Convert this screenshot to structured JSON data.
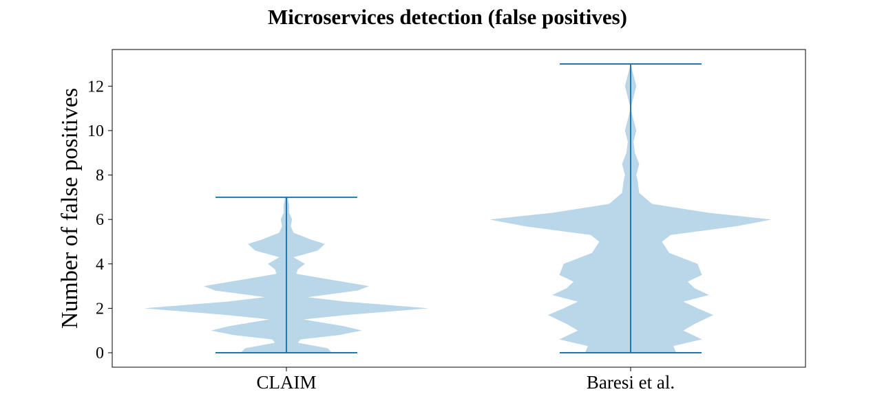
{
  "chart_data": {
    "type": "violin",
    "title": "Microservices detection (false positives)",
    "xlabel": "",
    "ylabel": "Number of false positives",
    "categories": [
      "CLAIM",
      "Baresi et al."
    ],
    "ylim": [
      -0.65,
      13.65
    ],
    "yticks": [
      0,
      2,
      4,
      6,
      8,
      10,
      12
    ],
    "grid": false,
    "legend": "none",
    "colors": {
      "body": "#bad6e9",
      "lines": "#1f77b4",
      "frame": "#000000"
    },
    "series": [
      {
        "category": "CLAIM",
        "min": 0,
        "max": 7,
        "density": [
          [
            0,
            0.32
          ],
          [
            0.2,
            0.29
          ],
          [
            0.45,
            0.08
          ],
          [
            0.6,
            0.1
          ],
          [
            0.8,
            0.37
          ],
          [
            1.0,
            0.53
          ],
          [
            1.2,
            0.4
          ],
          [
            1.5,
            0.12
          ],
          [
            1.7,
            0.42
          ],
          [
            2.0,
            1.0
          ],
          [
            2.3,
            0.42
          ],
          [
            2.5,
            0.15
          ],
          [
            2.8,
            0.5
          ],
          [
            3.0,
            0.58
          ],
          [
            3.3,
            0.3
          ],
          [
            3.55,
            0.07
          ],
          [
            3.75,
            0.08
          ],
          [
            4.0,
            0.13
          ],
          [
            4.3,
            0.05
          ],
          [
            4.6,
            0.22
          ],
          [
            4.9,
            0.27
          ],
          [
            5.1,
            0.17
          ],
          [
            5.4,
            0.05
          ],
          [
            5.7,
            0.03
          ],
          [
            6.0,
            0.04
          ],
          [
            6.3,
            0.02
          ],
          [
            6.6,
            0.02
          ],
          [
            7.0,
            0.01
          ]
        ]
      },
      {
        "category": "Baresi et al.",
        "min": 0,
        "max": 13,
        "density": [
          [
            0,
            0.32
          ],
          [
            0.3,
            0.3
          ],
          [
            0.6,
            0.5
          ],
          [
            1.0,
            0.37
          ],
          [
            1.3,
            0.45
          ],
          [
            1.7,
            0.58
          ],
          [
            2.0,
            0.47
          ],
          [
            2.3,
            0.37
          ],
          [
            2.6,
            0.55
          ],
          [
            2.9,
            0.45
          ],
          [
            3.2,
            0.4
          ],
          [
            3.5,
            0.5
          ],
          [
            4.0,
            0.47
          ],
          [
            4.5,
            0.27
          ],
          [
            5.0,
            0.22
          ],
          [
            5.3,
            0.28
          ],
          [
            5.7,
            0.75
          ],
          [
            6.0,
            0.99
          ],
          [
            6.3,
            0.55
          ],
          [
            6.7,
            0.15
          ],
          [
            7.2,
            0.06
          ],
          [
            7.7,
            0.05
          ],
          [
            8.0,
            0.04
          ],
          [
            8.5,
            0.06
          ],
          [
            9.0,
            0.03
          ],
          [
            9.5,
            0.02
          ],
          [
            10.0,
            0.04
          ],
          [
            10.5,
            0.02
          ],
          [
            11.0,
            0.0
          ],
          [
            11.5,
            0.02
          ],
          [
            12.0,
            0.04
          ],
          [
            12.5,
            0.02
          ],
          [
            13.0,
            0.0
          ]
        ]
      }
    ]
  }
}
